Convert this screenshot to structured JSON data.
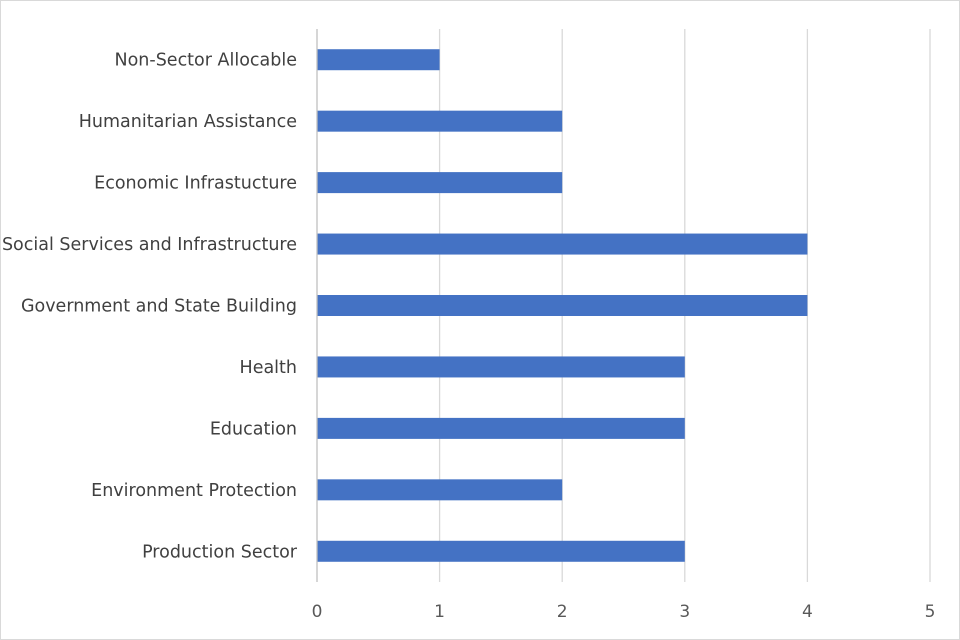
{
  "chart_data": {
    "type": "bar",
    "orientation": "horizontal",
    "categories": [
      "Non-Sector Allocable",
      "Humanitarian Assistance",
      "Economic Infrastucture",
      "Social Services and Infrastructure",
      "Government and State Building",
      "Health",
      "Education",
      "Environment Protection",
      "Production Sector"
    ],
    "values": [
      1,
      2,
      2,
      4,
      4,
      3,
      3,
      2,
      3
    ],
    "title": "",
    "xlabel": "",
    "ylabel": "",
    "xlim": [
      0,
      5
    ],
    "x_ticks": [
      "0",
      "1",
      "2",
      "3",
      "4",
      "5"
    ],
    "grid": true,
    "legend": "none",
    "colors": {
      "bar": "#4472C4",
      "grid": "#d9d9d9",
      "axis": "#bfbfbf"
    }
  }
}
